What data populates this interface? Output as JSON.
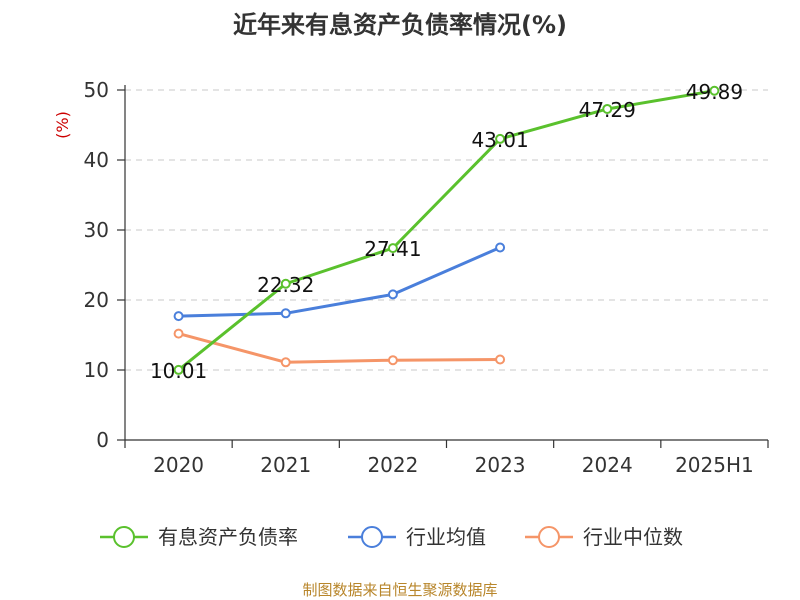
{
  "chart_data": {
    "type": "line",
    "title": "近年来有息资产负债率情况(%)",
    "ylabel": "(%)",
    "xlabel": "",
    "ylim": [
      0,
      50
    ],
    "yticks": [
      0,
      10,
      20,
      30,
      40,
      50
    ],
    "categories": [
      "2020",
      "2021",
      "2022",
      "2023",
      "2024",
      "2025H1"
    ],
    "grid": true,
    "legend_position": "bottom",
    "series": [
      {
        "name": "有息资产负债率",
        "color": "#5ac12d",
        "values": [
          10.01,
          22.32,
          27.41,
          43.01,
          47.29,
          49.89
        ],
        "labels": [
          "10.01",
          "22.32",
          "27.41",
          "43.01",
          "47.29",
          "49.89"
        ],
        "show_labels": true
      },
      {
        "name": "行业均值",
        "color": "#4a7fdb",
        "values": [
          17.7,
          18.1,
          20.8,
          27.5,
          null,
          null
        ],
        "show_labels": false
      },
      {
        "name": "行业中位数",
        "color": "#f59568",
        "values": [
          15.2,
          11.1,
          11.4,
          11.5,
          null,
          null
        ],
        "show_labels": false
      }
    ]
  },
  "source": "制图数据来自恒生聚源数据库"
}
